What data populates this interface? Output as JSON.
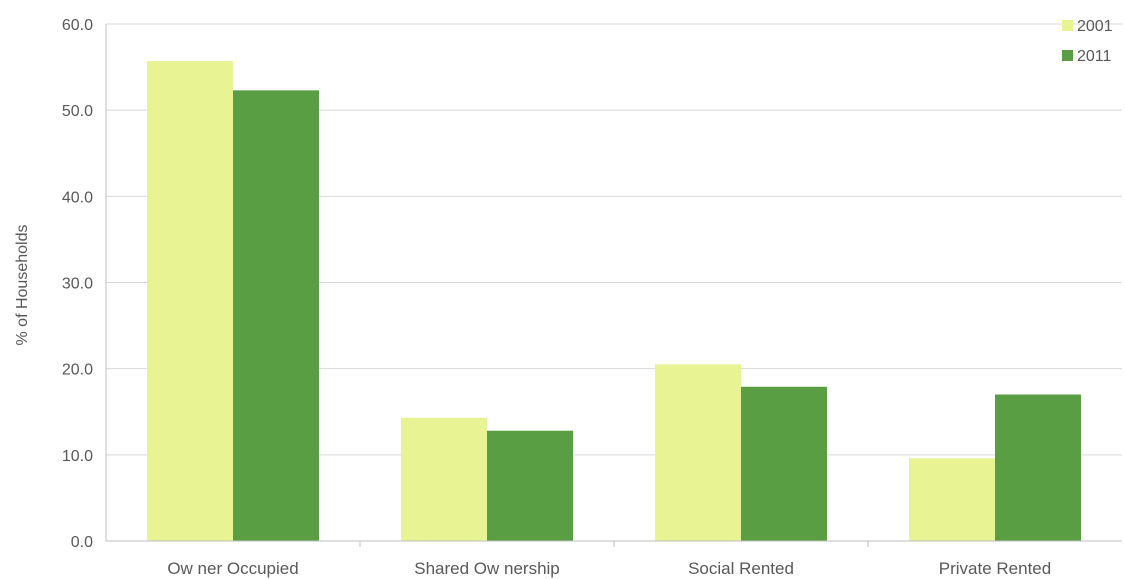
{
  "chart_data": {
    "type": "bar",
    "title": "",
    "xlabel": "",
    "ylabel": "% of Households",
    "ylim": [
      0,
      60
    ],
    "yticks": [
      "0.0",
      "10.0",
      "20.0",
      "30.0",
      "40.0",
      "50.0",
      "60.0"
    ],
    "grid": true,
    "legend_position": "top-right",
    "categories": [
      "Ow ner Occupied",
      "Shared Ow nership",
      "Social Rented",
      "Private Rented"
    ],
    "series": [
      {
        "name": "2001",
        "color": "#e8f394",
        "values": [
          55.7,
          14.3,
          20.5,
          9.6
        ]
      },
      {
        "name": "2011",
        "color": "#5a9e44",
        "values": [
          52.3,
          12.8,
          17.9,
          17.0
        ]
      }
    ]
  }
}
